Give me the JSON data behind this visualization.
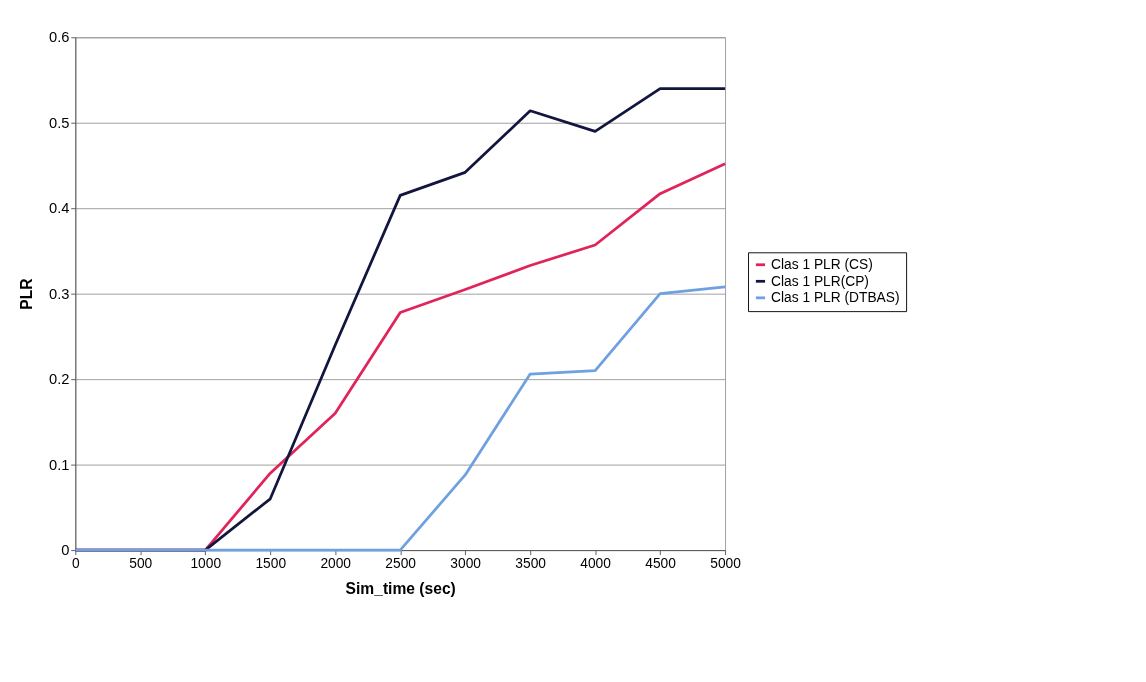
{
  "chart_data": {
    "type": "line",
    "xlabel": "Sim_time (sec)",
    "ylabel": "PLR",
    "x": [
      0,
      500,
      1000,
      1500,
      2000,
      2500,
      3000,
      3500,
      4000,
      4500,
      5000
    ],
    "series": [
      {
        "name": "Clas 1 PLR (CS)",
        "color": "#e0245a",
        "values": [
          0,
          0,
          0,
          0.09,
          0.16,
          0.278,
          0.305,
          0.333,
          0.357,
          0.417,
          0.452
        ]
      },
      {
        "name": "Clas 1 PLR(CP)",
        "color": "#12163f",
        "values": [
          0,
          0,
          0,
          0.06,
          0.24,
          0.415,
          0.442,
          0.514,
          0.49,
          0.54,
          0.54
        ]
      },
      {
        "name": "Clas 1 PLR (DTBAS)",
        "color": "#6fa0e0",
        "values": [
          0,
          0,
          0,
          0,
          0,
          0,
          0.088,
          0.206,
          0.21,
          0.3,
          0.308
        ]
      }
    ],
    "xlim": [
      0,
      5000
    ],
    "xticks": [
      0,
      500,
      1000,
      1500,
      2000,
      2500,
      3000,
      3500,
      4000,
      4500,
      5000
    ],
    "ylim": [
      0,
      0.6
    ],
    "yticks": [
      0,
      0.1,
      0.2,
      0.3,
      0.4,
      0.5,
      0.6
    ],
    "grid": "y",
    "legend": "right",
    "marker": "none",
    "line_style": "solid"
  }
}
